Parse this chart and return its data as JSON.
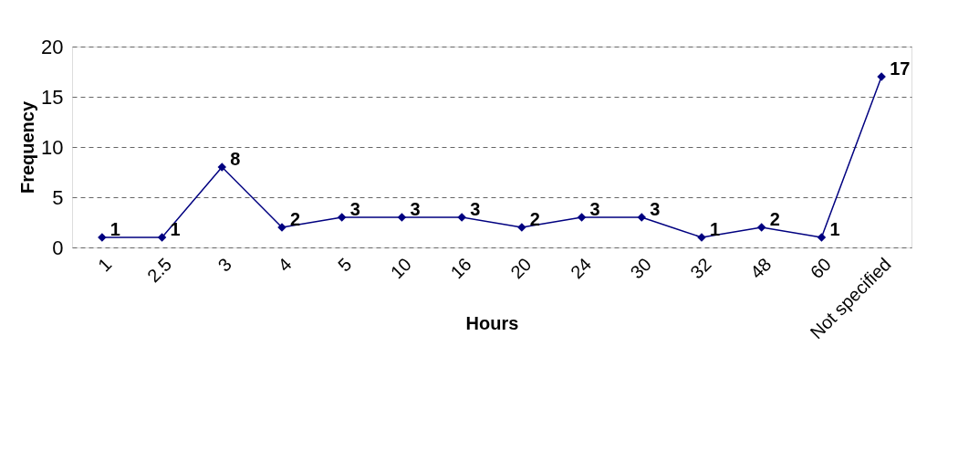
{
  "chart_data": {
    "type": "line",
    "xlabel": "Hours",
    "ylabel": "Frequency",
    "categories": [
      "1",
      "2.5",
      "3",
      "4",
      "5",
      "10",
      "16",
      "20",
      "24",
      "30",
      "32",
      "48",
      "60",
      "Not specified"
    ],
    "series": [
      {
        "color": "#000080",
        "values": [
          1,
          1,
          8,
          2,
          3,
          3,
          3,
          2,
          3,
          3,
          1,
          2,
          1,
          17
        ]
      }
    ],
    "ylim": [
      0,
      20
    ],
    "yticks": [
      0,
      5,
      10,
      15,
      20
    ],
    "grid": "y",
    "marker": "diamond",
    "line_style": "solid",
    "data_labels": true
  }
}
